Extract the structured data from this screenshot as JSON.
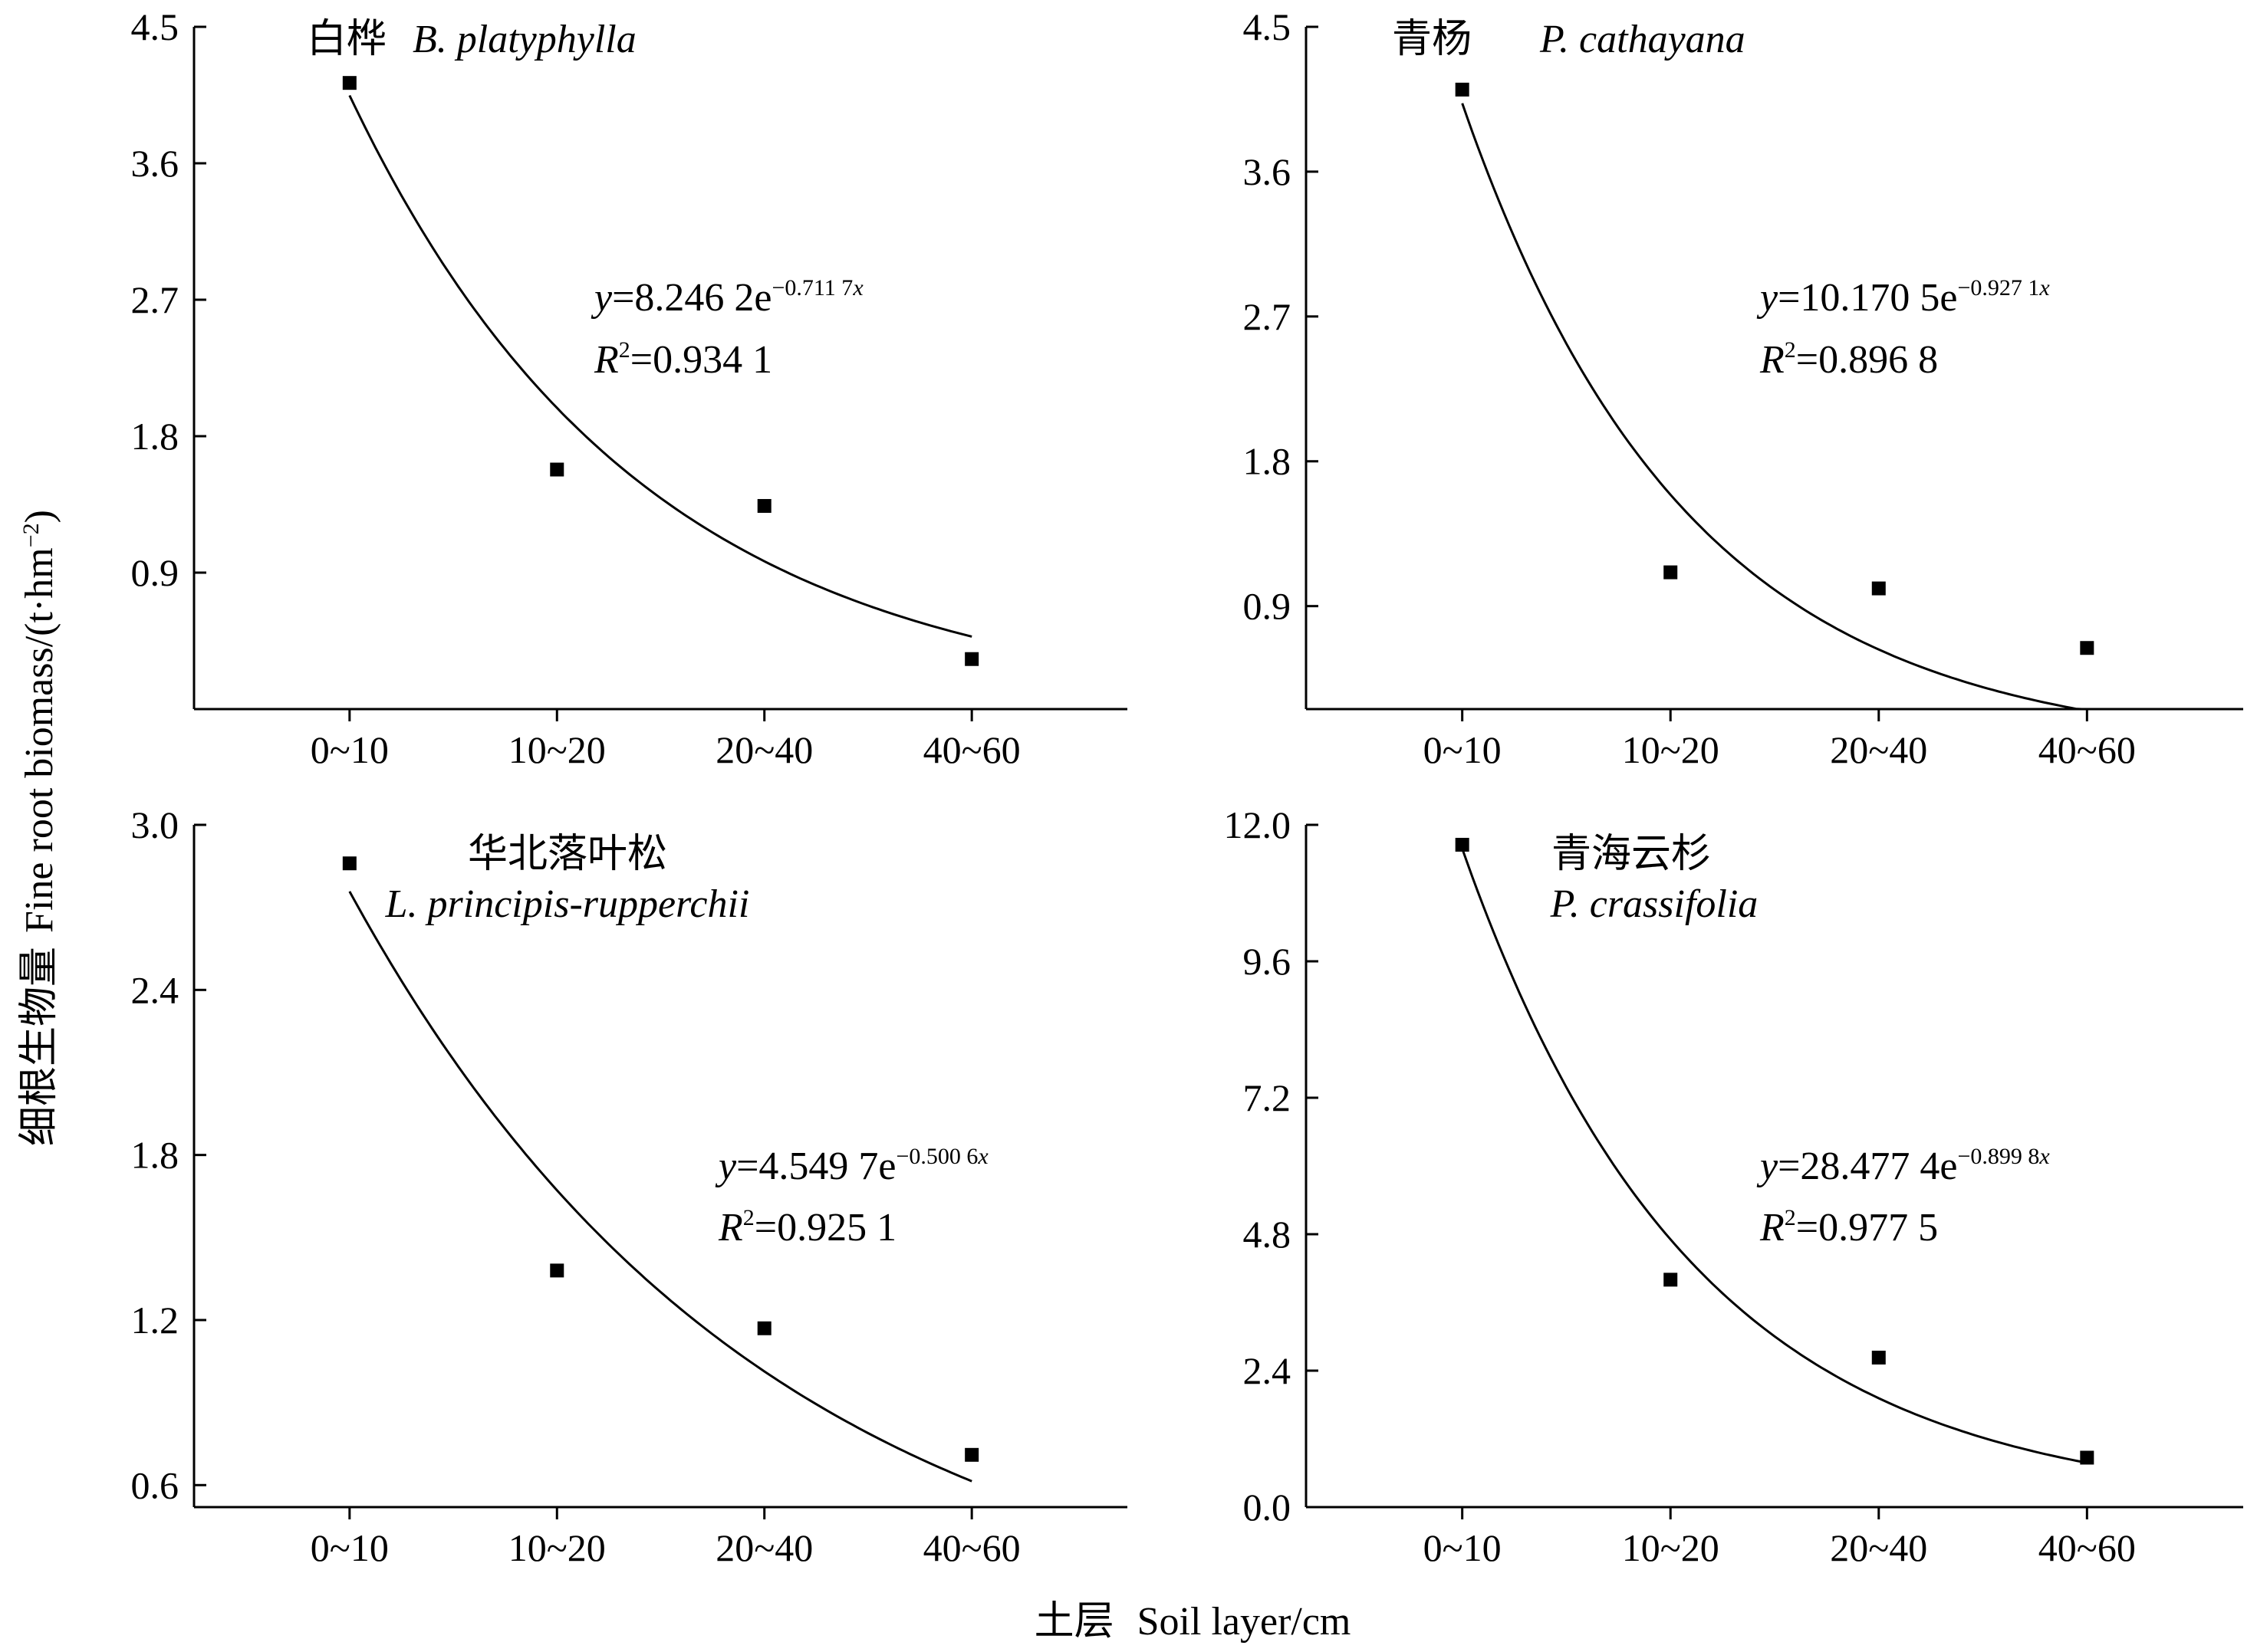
{
  "ylabel": {
    "cn": "细根生物量",
    "en": "Fine root biomass/(t·hm",
    "sup": "−2",
    "close": ")"
  },
  "xlabel": {
    "cn": "土层",
    "en": "Soil layer/cm"
  },
  "chart_data": [
    {
      "type": "scatter",
      "title_cn": "白桦",
      "title_latin": "B. platyphylla",
      "categories": [
        "0~10",
        "10~20",
        "20~40",
        "40~60"
      ],
      "x": [
        1,
        2,
        3,
        4
      ],
      "values": [
        4.13,
        1.58,
        1.34,
        0.33
      ],
      "ylim": [
        0.0,
        4.5
      ],
      "yticks": [
        "0.9",
        "1.8",
        "2.7",
        "3.6",
        "4.5"
      ],
      "ytick_values": [
        0.9,
        1.8,
        2.7,
        3.6,
        4.5
      ],
      "fit": {
        "a": 8.2462,
        "b": 0.7117
      },
      "equation": {
        "y": "y",
        "eq": "=8.246 2e",
        "exp_pre": "−0.711 7",
        "exp_var": "x",
        "r": "R",
        "r_sup": "2",
        "r_eq": "=0.934 1"
      }
    },
    {
      "type": "scatter",
      "title_cn": "青杨",
      "title_latin": "P. cathayana",
      "categories": [
        "0~10",
        "10~20",
        "20~40",
        "40~60"
      ],
      "x": [
        1,
        2,
        3,
        4
      ],
      "values": [
        4.11,
        1.11,
        1.01,
        0.64
      ],
      "ylim": [
        0.26,
        4.5
      ],
      "yticks": [
        "0.9",
        "1.8",
        "2.7",
        "3.6",
        "4.5"
      ],
      "ytick_values": [
        0.9,
        1.8,
        2.7,
        3.6,
        4.5
      ],
      "fit": {
        "a": 10.1705,
        "b": 0.9271
      },
      "equation": {
        "y": "y",
        "eq": "=10.170 5e",
        "exp_pre": "−0.927 1",
        "exp_var": "x",
        "r": "R",
        "r_sup": "2",
        "r_eq": "=0.896 8"
      }
    },
    {
      "type": "scatter",
      "title_cn": "华北落叶松",
      "title_latin": "L. principis-rupperchii",
      "categories": [
        "0~10",
        "10~20",
        "20~40",
        "40~60"
      ],
      "x": [
        1,
        2,
        3,
        4
      ],
      "values": [
        2.86,
        1.38,
        1.17,
        0.71
      ],
      "ylim": [
        0.52,
        3.0
      ],
      "yticks": [
        "0.6",
        "1.2",
        "1.8",
        "2.4",
        "3.0"
      ],
      "ytick_values": [
        0.6,
        1.2,
        1.8,
        2.4,
        3.0
      ],
      "fit": {
        "a": 4.5497,
        "b": 0.5006
      },
      "equation": {
        "y": "y",
        "eq": "=4.549 7e",
        "exp_pre": "−0.500 6",
        "exp_var": "x",
        "r": "R",
        "r_sup": "2",
        "r_eq": "=0.925 1"
      }
    },
    {
      "type": "scatter",
      "title_cn": "青海云杉",
      "title_latin": "P. crassifolia",
      "categories": [
        "0~10",
        "10~20",
        "20~40",
        "40~60"
      ],
      "x": [
        1,
        2,
        3,
        4
      ],
      "values": [
        11.65,
        4.0,
        2.63,
        0.87
      ],
      "ylim": [
        0.0,
        12.0
      ],
      "yticks": [
        "0.0",
        "2.4",
        "4.8",
        "7.2",
        "9.6",
        "12.0"
      ],
      "ytick_values": [
        0.0,
        2.4,
        4.8,
        7.2,
        9.6,
        12.0
      ],
      "fit": {
        "a": 28.4774,
        "b": 0.8998
      },
      "equation": {
        "y": "y",
        "eq": "=28.477 4e",
        "exp_pre": "−0.899 8",
        "exp_var": "x",
        "r": "R",
        "r_sup": "2",
        "r_eq": "=0.977 5"
      }
    }
  ]
}
